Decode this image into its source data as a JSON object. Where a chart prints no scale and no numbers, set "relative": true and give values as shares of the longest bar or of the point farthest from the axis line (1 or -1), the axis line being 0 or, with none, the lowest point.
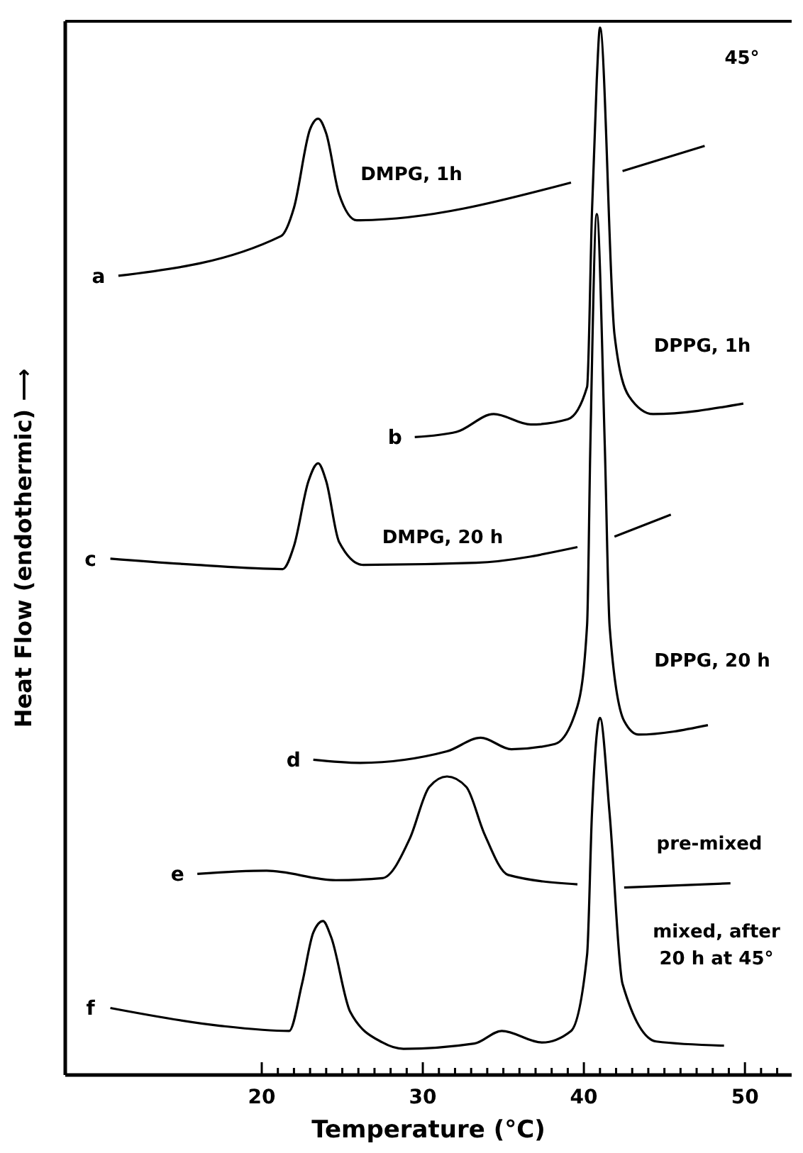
{
  "chart_data": {
    "type": "line",
    "relative": true,
    "xlabel": "Temperature (°C)",
    "ylabel": "Heat Flow (endothermic) ⟶",
    "xlim": [
      7.8,
      52.9
    ],
    "xticks": [
      20,
      {
        "value": 21,
        "label": null
      },
      {
        "value": 22,
        "label": null
      },
      {
        "value": 23,
        "label": null
      },
      {
        "value": 24,
        "label": null
      },
      {
        "value": 25,
        "label": null
      },
      {
        "value": 26,
        "label": null
      },
      {
        "value": 27,
        "label": null
      },
      {
        "value": 28,
        "label": null
      },
      {
        "value": 29,
        "label": null
      },
      30,
      {
        "value": 31,
        "label": null
      },
      {
        "value": 32,
        "label": null
      },
      {
        "value": 33,
        "label": null
      },
      {
        "value": 34,
        "label": null
      },
      {
        "value": 35,
        "label": null
      },
      {
        "value": 36,
        "label": null
      },
      {
        "value": 37,
        "label": null
      },
      {
        "value": 38,
        "label": null
      },
      {
        "value": 39,
        "label": null
      },
      40,
      {
        "value": 41,
        "label": null
      },
      {
        "value": 42,
        "label": null
      },
      {
        "value": 43,
        "label": null
      },
      {
        "value": 44,
        "label": null
      },
      {
        "value": 45,
        "label": null
      },
      {
        "value": 46,
        "label": null
      },
      {
        "value": 47,
        "label": null
      },
      {
        "value": 48,
        "label": null
      },
      {
        "value": 49,
        "label": null
      },
      50,
      {
        "value": 51,
        "label": null
      },
      {
        "value": 52,
        "label": null
      }
    ],
    "marker": "none",
    "line_style": "solid",
    "series": [
      {
        "name": "a",
        "color": "#000000",
        "x": [
          11.1,
          21.2,
          22.0,
          23.0,
          23.5,
          24.0,
          24.8,
          25.9,
          39.2,
          40.8,
          42.4,
          47.5
        ],
        "values": [
          0.763,
          0.801,
          0.828,
          0.903,
          0.913,
          0.899,
          0.841,
          0.816,
          0.852,
          null,
          0.863,
          0.887
        ]
      },
      {
        "name": "b",
        "color": "#000000",
        "x": [
          29.5,
          32.1,
          34.4,
          36.7,
          39.0,
          40.2,
          40.5,
          40.8,
          41.0,
          41.9,
          42.8,
          44.3,
          49.9
        ],
        "values": [
          0.609,
          0.614,
          0.631,
          0.621,
          0.626,
          0.657,
          0.823,
          0.95,
          1.0,
          0.707,
          0.648,
          0.631,
          0.641
        ]
      },
      {
        "name": "c",
        "color": "#000000",
        "x": [
          10.6,
          16.0,
          21.3,
          22.0,
          22.9,
          23.5,
          24.0,
          24.8,
          26.3,
          33.3,
          39.6,
          40.8,
          41.9,
          45.4
        ],
        "values": [
          0.493,
          0.487,
          0.483,
          0.505,
          0.567,
          0.584,
          0.567,
          0.509,
          0.487,
          0.489,
          0.504,
          null,
          0.514,
          0.535
        ]
      },
      {
        "name": "d",
        "color": "#000000",
        "x": [
          23.2,
          26.1,
          31.5,
          33.6,
          35.5,
          38.2,
          39.6,
          40.2,
          40.4,
          40.8,
          41.3,
          41.6,
          42.5,
          43.4,
          47.7
        ],
        "values": [
          0.301,
          0.298,
          0.309,
          0.322,
          0.311,
          0.316,
          0.352,
          0.43,
          0.6,
          0.822,
          0.6,
          0.428,
          0.338,
          0.325,
          0.334
        ]
      },
      {
        "name": "e",
        "color": "#000000",
        "x": [
          16.0,
          20.3,
          24.6,
          27.5,
          29.2,
          30.4,
          31.5,
          32.7,
          33.8,
          35.3,
          39.6,
          40.8,
          42.5,
          49.1
        ],
        "values": [
          0.192,
          0.195,
          0.186,
          0.188,
          0.226,
          0.275,
          0.285,
          0.275,
          0.231,
          0.191,
          0.182,
          null,
          0.179,
          0.183
        ]
      },
      {
        "name": "f",
        "color": "#000000",
        "x": [
          10.6,
          17.4,
          21.7,
          22.5,
          23.2,
          23.8,
          24.3,
          25.5,
          27.5,
          28.8,
          33.2,
          34.9,
          37.4,
          39.2,
          40.2,
          40.5,
          41.0,
          41.6,
          42.4,
          44.5,
          48.7
        ],
        "values": [
          0.064,
          0.047,
          0.042,
          0.087,
          0.136,
          0.147,
          0.132,
          0.06,
          0.031,
          0.025,
          0.03,
          0.042,
          0.031,
          0.042,
          0.115,
          0.249,
          0.341,
          0.249,
          0.087,
          0.032,
          0.028
        ]
      }
    ],
    "annotations": [
      "DMPG, 1h",
      "DPPG, 1h",
      "DMPG, 20 h",
      "DPPG, 20 h",
      "pre-mixed",
      "mixed, after\n20 h at 45°",
      "45°"
    ]
  }
}
